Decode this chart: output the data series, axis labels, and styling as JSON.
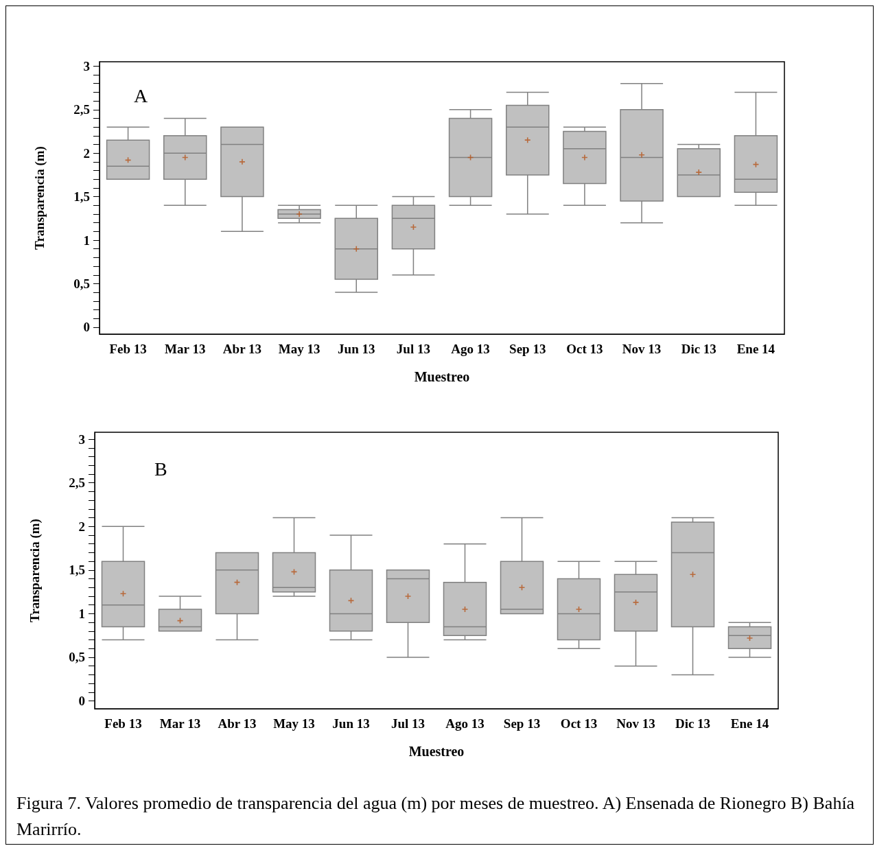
{
  "chart_data": [
    {
      "type": "box",
      "title": "A",
      "xlabel": "Muestreo",
      "ylabel": "Transparencia (m)",
      "color": "#c0c0c0",
      "categories": [
        "Feb 13",
        "Mar 13",
        "Abr 13",
        "May 13",
        "Jun 13",
        "Jul 13",
        "Ago 13",
        "Sep 13",
        "Oct 13",
        "Nov 13",
        "Dic 13",
        "Ene 14"
      ],
      "boxes": [
        {
          "low": 1.7,
          "q1": 1.7,
          "median": 1.85,
          "q3": 2.15,
          "high": 2.3,
          "mean": 1.92
        },
        {
          "low": 1.4,
          "q1": 1.7,
          "median": 2.0,
          "q3": 2.2,
          "high": 2.4,
          "mean": 1.95
        },
        {
          "low": 1.1,
          "q1": 1.5,
          "median": 2.1,
          "q3": 2.3,
          "high": 2.3,
          "mean": 1.9
        },
        {
          "low": 1.2,
          "q1": 1.25,
          "median": 1.3,
          "q3": 1.35,
          "high": 1.4,
          "mean": 1.3
        },
        {
          "low": 0.4,
          "q1": 0.55,
          "median": 0.9,
          "q3": 1.25,
          "high": 1.4,
          "mean": 0.9
        },
        {
          "low": 0.6,
          "q1": 0.9,
          "median": 1.25,
          "q3": 1.4,
          "high": 1.5,
          "mean": 1.15
        },
        {
          "low": 1.4,
          "q1": 1.5,
          "median": 1.95,
          "q3": 2.4,
          "high": 2.5,
          "mean": 1.95
        },
        {
          "low": 1.3,
          "q1": 1.75,
          "median": 2.3,
          "q3": 2.55,
          "high": 2.7,
          "mean": 2.15
        },
        {
          "low": 1.4,
          "q1": 1.65,
          "median": 2.05,
          "q3": 2.25,
          "high": 2.3,
          "mean": 1.95
        },
        {
          "low": 1.2,
          "q1": 1.45,
          "median": 1.95,
          "q3": 2.5,
          "high": 2.8,
          "mean": 1.98
        },
        {
          "low": 1.5,
          "q1": 1.5,
          "median": 1.75,
          "q3": 2.05,
          "high": 2.1,
          "mean": 1.78
        },
        {
          "low": 1.4,
          "q1": 1.55,
          "median": 1.7,
          "q3": 2.2,
          "high": 2.7,
          "mean": 1.87
        }
      ],
      "ylim": [
        -0.08,
        3.05
      ],
      "yticks": [
        {
          "value": 0,
          "label": "0"
        },
        {
          "value": 0.1,
          "label": null
        },
        {
          "value": 0.2,
          "label": null
        },
        {
          "value": 0.3,
          "label": null
        },
        {
          "value": 0.4,
          "label": null
        },
        {
          "value": 0.5,
          "label": "0,5"
        },
        {
          "value": 0.6,
          "label": null
        },
        {
          "value": 0.7,
          "label": null
        },
        {
          "value": 0.8,
          "label": null
        },
        {
          "value": 0.9,
          "label": null
        },
        {
          "value": 1,
          "label": "1"
        },
        {
          "value": 1.1,
          "label": null
        },
        {
          "value": 1.2,
          "label": null
        },
        {
          "value": 1.3,
          "label": null
        },
        {
          "value": 1.4,
          "label": null
        },
        {
          "value": 1.5,
          "label": "1,5"
        },
        {
          "value": 1.6,
          "label": null
        },
        {
          "value": 1.7,
          "label": null
        },
        {
          "value": 1.8,
          "label": null
        },
        {
          "value": 1.9,
          "label": null
        },
        {
          "value": 2,
          "label": "2"
        },
        {
          "value": 2.1,
          "label": null
        },
        {
          "value": 2.2,
          "label": null
        },
        {
          "value": 2.3,
          "label": null
        },
        {
          "value": 2.4,
          "label": null
        },
        {
          "value": 2.5,
          "label": "2,5"
        },
        {
          "value": 2.6,
          "label": null
        },
        {
          "value": 2.7,
          "label": null
        },
        {
          "value": 2.8,
          "label": null
        },
        {
          "value": 2.9,
          "label": null
        },
        {
          "value": 3,
          "label": "3"
        }
      ],
      "grid": false
    },
    {
      "type": "box",
      "title": "B",
      "xlabel": "Muestreo",
      "ylabel": "Transparencia (m)",
      "color": "#c0c0c0",
      "categories": [
        "Feb 13",
        "Mar 13",
        "Abr 13",
        "May 13",
        "Jun 13",
        "Jul 13",
        "Ago 13",
        "Sep 13",
        "Oct 13",
        "Nov 13",
        "Dic 13",
        "Ene 14"
      ],
      "boxes": [
        {
          "low": 0.7,
          "q1": 0.85,
          "median": 1.1,
          "q3": 1.6,
          "high": 2.0,
          "mean": 1.23
        },
        {
          "low": 0.8,
          "q1": 0.8,
          "median": 0.85,
          "q3": 1.05,
          "high": 1.2,
          "mean": 0.92
        },
        {
          "low": 0.7,
          "q1": 1.0,
          "median": 1.5,
          "q3": 1.7,
          "high": 1.7,
          "mean": 1.36
        },
        {
          "low": 1.2,
          "q1": 1.25,
          "median": 1.3,
          "q3": 1.7,
          "high": 2.1,
          "mean": 1.48
        },
        {
          "low": 0.7,
          "q1": 0.8,
          "median": 1.0,
          "q3": 1.5,
          "high": 1.9,
          "mean": 1.15
        },
        {
          "low": 0.5,
          "q1": 0.9,
          "median": 1.4,
          "q3": 1.5,
          "high": 1.5,
          "mean": 1.2
        },
        {
          "low": 0.7,
          "q1": 0.75,
          "median": 0.85,
          "q3": 1.36,
          "high": 1.8,
          "mean": 1.05
        },
        {
          "low": 1.0,
          "q1": 1.0,
          "median": 1.05,
          "q3": 1.6,
          "high": 2.1,
          "mean": 1.3
        },
        {
          "low": 0.6,
          "q1": 0.7,
          "median": 1.0,
          "q3": 1.4,
          "high": 1.6,
          "mean": 1.05
        },
        {
          "low": 0.4,
          "q1": 0.8,
          "median": 1.25,
          "q3": 1.45,
          "high": 1.6,
          "mean": 1.13
        },
        {
          "low": 0.3,
          "q1": 0.85,
          "median": 1.7,
          "q3": 2.05,
          "high": 2.1,
          "mean": 1.45
        },
        {
          "low": 0.5,
          "q1": 0.6,
          "median": 0.75,
          "q3": 0.85,
          "high": 0.9,
          "mean": 0.72
        }
      ],
      "ylim": [
        -0.09,
        3.08
      ],
      "yticks": [
        {
          "value": 0,
          "label": "0"
        },
        {
          "value": 0.1,
          "label": null
        },
        {
          "value": 0.2,
          "label": null
        },
        {
          "value": 0.3,
          "label": null
        },
        {
          "value": 0.4,
          "label": null
        },
        {
          "value": 0.5,
          "label": "0,5"
        },
        {
          "value": 0.6,
          "label": null
        },
        {
          "value": 0.7,
          "label": null
        },
        {
          "value": 0.8,
          "label": null
        },
        {
          "value": 0.9,
          "label": null
        },
        {
          "value": 1,
          "label": "1"
        },
        {
          "value": 1.1,
          "label": null
        },
        {
          "value": 1.2,
          "label": null
        },
        {
          "value": 1.3,
          "label": null
        },
        {
          "value": 1.4,
          "label": null
        },
        {
          "value": 1.5,
          "label": "1,5"
        },
        {
          "value": 1.6,
          "label": null
        },
        {
          "value": 1.7,
          "label": null
        },
        {
          "value": 1.8,
          "label": null
        },
        {
          "value": 1.9,
          "label": null
        },
        {
          "value": 2,
          "label": "2"
        },
        {
          "value": 2.1,
          "label": null
        },
        {
          "value": 2.2,
          "label": null
        },
        {
          "value": 2.3,
          "label": null
        },
        {
          "value": 2.4,
          "label": null
        },
        {
          "value": 2.5,
          "label": "2,5"
        },
        {
          "value": 2.6,
          "label": null
        },
        {
          "value": 2.7,
          "label": null
        },
        {
          "value": 2.8,
          "label": null
        },
        {
          "value": 2.9,
          "label": null
        },
        {
          "value": 3,
          "label": "3"
        }
      ],
      "grid": false,
      "annotations": [
        "Figura 7. Valores promedio de transparencia del agua (m) por meses de muestreo. A) Ensenada de Rionegro B) Bahía Marirrío."
      ]
    }
  ]
}
